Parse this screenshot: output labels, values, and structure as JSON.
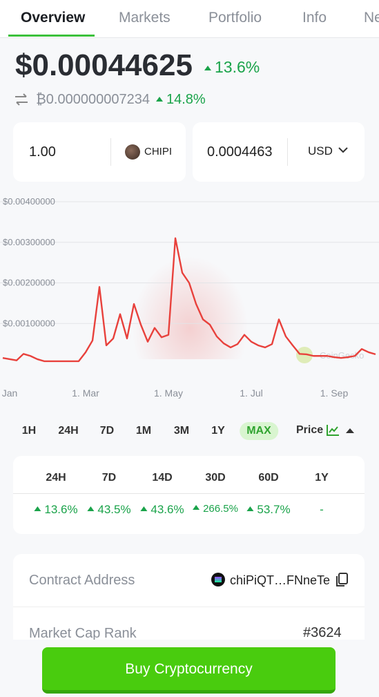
{
  "tabs": [
    "Overview",
    "Markets",
    "Portfolio",
    "Info",
    "Ne"
  ],
  "price": "$0.00044625",
  "price_change": "13.6%",
  "btc_price": "₿0.000000007234",
  "btc_change": "14.8%",
  "converter": {
    "amount": "1.00",
    "token": "CHIPI",
    "converted": "0.0004463",
    "currency": "USD"
  },
  "chart_data": {
    "type": "line",
    "color": "#e8413c",
    "categories": [
      null,
      "Jan",
      null,
      null,
      null,
      null,
      null,
      null,
      null,
      null,
      null,
      null,
      "1. Mar",
      null,
      null,
      null,
      null,
      null,
      null,
      null,
      null,
      null,
      null,
      null,
      "1. May",
      null,
      null,
      null,
      null,
      null,
      null,
      null,
      null,
      null,
      null,
      null,
      "1. Jul",
      null,
      null,
      null,
      null,
      null,
      null,
      null,
      null,
      null,
      null,
      null,
      "1. Sep",
      null,
      null,
      null,
      null,
      null,
      null
    ],
    "values": [
      0.00015,
      0.00012,
      9e-05,
      0.00025,
      0.0002,
      0.00012,
      7e-05,
      7e-05,
      7e-05,
      7e-05,
      7e-05,
      7e-05,
      0.00029,
      0.00058,
      0.0019,
      0.00046,
      0.00063,
      0.00123,
      0.00063,
      0.00148,
      0.00097,
      0.00055,
      0.00089,
      0.00066,
      0.00072,
      0.0031,
      0.00225,
      0.002,
      0.00148,
      0.0011,
      0.00097,
      0.00068,
      0.00051,
      0.00041,
      0.00049,
      0.00072,
      0.00055,
      0.00046,
      0.00041,
      0.00049,
      0.0011,
      0.00068,
      0.00046,
      0.00025,
      0.00024,
      0.0002,
      0.0002,
      0.0002,
      0.00017,
      0.00015,
      0.00017,
      0.0002,
      0.00037,
      0.00029,
      0.00024
    ],
    "ylim": [
      0,
      0.004
    ],
    "yticks": [
      {
        "value": 0.004,
        "label": "$0.00400000"
      },
      {
        "value": 0.003,
        "label": "$0.00300000"
      },
      {
        "value": 0.002,
        "label": "$0.00200000"
      },
      {
        "value": 0.001,
        "label": "$0.00100000"
      }
    ],
    "grid": true,
    "watermark": "CoinGecko"
  },
  "ranges": [
    "1H",
    "24H",
    "7D",
    "1M",
    "3M",
    "1Y",
    "MAX"
  ],
  "selected_range": 6,
  "chart_mode": "Price",
  "changes": {
    "headers": [
      "24H",
      "7D",
      "14D",
      "30D",
      "60D",
      "1Y"
    ],
    "values": [
      "13.6%",
      "43.5%",
      "43.6%",
      "266.5%",
      "53.7%",
      "-"
    ]
  },
  "info_rows": [
    {
      "label": "Contract Address",
      "value": "chiPiQT…FNneTe"
    },
    {
      "label": "Market Cap Rank",
      "value": "#3624"
    }
  ],
  "buy_button": "Buy Cryptocurrency"
}
